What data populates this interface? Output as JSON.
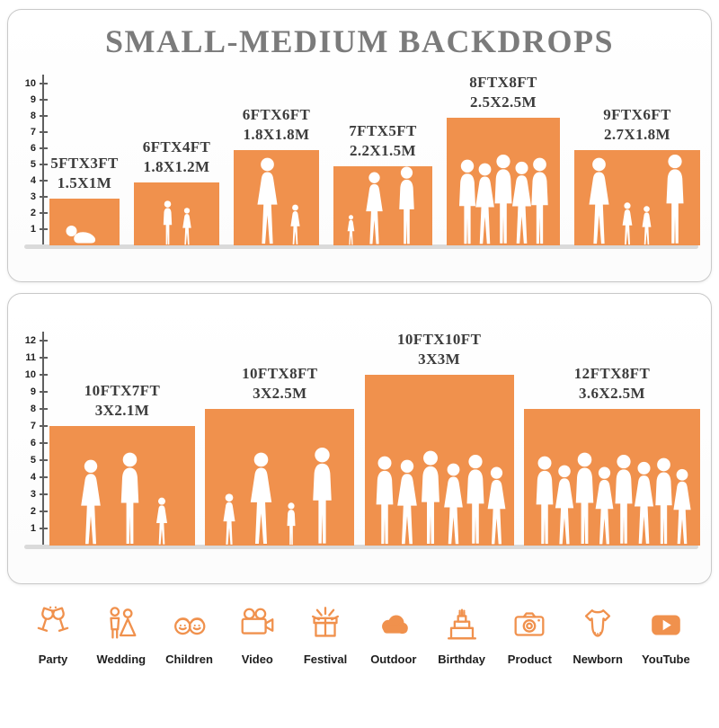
{
  "colors": {
    "accent": "#F0914D",
    "title_gray": "#7B7B7B"
  },
  "title": "SMALL-MEDIUM BACKDROPS",
  "top_panel": {
    "scale": [
      "10",
      "9",
      "8",
      "7",
      "6",
      "5",
      "4",
      "3",
      "2",
      "1"
    ],
    "items": [
      {
        "ft": "5FTX3FT",
        "m": "1.5X1M",
        "width_ft": 5,
        "height_ft": 3
      },
      {
        "ft": "6FTX4FT",
        "m": "1.8X1.2M",
        "width_ft": 6,
        "height_ft": 4
      },
      {
        "ft": "6FTX6FT",
        "m": "1.8X1.8M",
        "width_ft": 6,
        "height_ft": 6
      },
      {
        "ft": "7FTX5FT",
        "m": "2.2X1.5M",
        "width_ft": 7,
        "height_ft": 5
      },
      {
        "ft": "8FTX8FT",
        "m": "2.5X2.5M",
        "width_ft": 8,
        "height_ft": 8
      },
      {
        "ft": "9FTX6FT",
        "m": "2.7X1.8M",
        "width_ft": 9,
        "height_ft": 6
      }
    ]
  },
  "bottom_panel": {
    "scale": [
      "12",
      "11",
      "10",
      "9",
      "8",
      "7",
      "6",
      "5",
      "4",
      "3",
      "2",
      "1"
    ],
    "items": [
      {
        "ft": "10FTX7FT",
        "m": "3X2.1M",
        "width_ft": 10,
        "height_ft": 7
      },
      {
        "ft": "10FTX8FT",
        "m": "3X2.5M",
        "width_ft": 10,
        "height_ft": 8
      },
      {
        "ft": "10FTX10FT",
        "m": "3X3M",
        "width_ft": 10,
        "height_ft": 10
      },
      {
        "ft": "12FTX8FT",
        "m": "3.6X2.5M",
        "width_ft": 12,
        "height_ft": 8
      }
    ]
  },
  "categories": [
    {
      "label": "Party",
      "icon": "party-icon"
    },
    {
      "label": "Wedding",
      "icon": "wedding-icon"
    },
    {
      "label": "Children",
      "icon": "children-icon"
    },
    {
      "label": "Video",
      "icon": "video-icon"
    },
    {
      "label": "Festival",
      "icon": "festival-icon"
    },
    {
      "label": "Outdoor",
      "icon": "outdoor-icon"
    },
    {
      "label": "Birthday",
      "icon": "birthday-icon"
    },
    {
      "label": "Product",
      "icon": "product-icon"
    },
    {
      "label": "Newborn",
      "icon": "newborn-icon"
    },
    {
      "label": "YouTube",
      "icon": "youtube-icon"
    }
  ]
}
